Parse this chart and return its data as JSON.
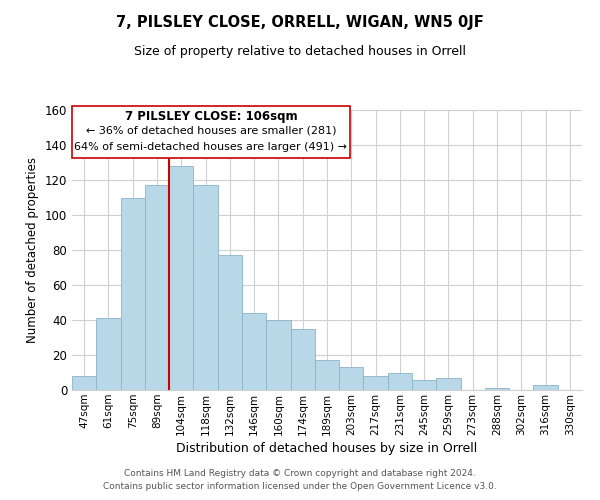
{
  "title": "7, PILSLEY CLOSE, ORRELL, WIGAN, WN5 0JF",
  "subtitle": "Size of property relative to detached houses in Orrell",
  "xlabel": "Distribution of detached houses by size in Orrell",
  "ylabel": "Number of detached properties",
  "bar_labels": [
    "47sqm",
    "61sqm",
    "75sqm",
    "89sqm",
    "104sqm",
    "118sqm",
    "132sqm",
    "146sqm",
    "160sqm",
    "174sqm",
    "189sqm",
    "203sqm",
    "217sqm",
    "231sqm",
    "245sqm",
    "259sqm",
    "273sqm",
    "288sqm",
    "302sqm",
    "316sqm",
    "330sqm"
  ],
  "bar_values": [
    8,
    41,
    110,
    117,
    128,
    117,
    77,
    44,
    40,
    35,
    17,
    13,
    8,
    10,
    6,
    7,
    0,
    1,
    0,
    3,
    0
  ],
  "bar_color": "#b8d8e8",
  "bar_edge_color": "#8ab4cc",
  "vline_x_index": 4,
  "vline_color": "#cc0000",
  "ylim": [
    0,
    160
  ],
  "yticks": [
    0,
    20,
    40,
    60,
    80,
    100,
    120,
    140,
    160
  ],
  "annotation_title": "7 PILSLEY CLOSE: 106sqm",
  "annotation_line1": "← 36% of detached houses are smaller (281)",
  "annotation_line2": "64% of semi-detached houses are larger (491) →",
  "footer_line1": "Contains HM Land Registry data © Crown copyright and database right 2024.",
  "footer_line2": "Contains public sector information licensed under the Open Government Licence v3.0.",
  "background_color": "#ffffff",
  "grid_color": "#d0d0d0"
}
